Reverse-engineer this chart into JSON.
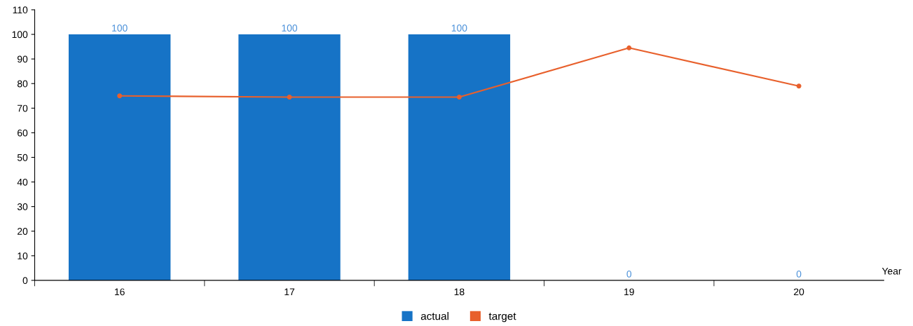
{
  "chart_data": {
    "type": "bar",
    "xlabel": "Year",
    "categories": [
      "16",
      "17",
      "18",
      "19",
      "20"
    ],
    "series": [
      {
        "name": "actual",
        "color": "#1673c6",
        "values": [
          100,
          100,
          100,
          0,
          0
        ],
        "value_labels": [
          "100",
          "100",
          "100",
          "0",
          "0"
        ]
      },
      {
        "name": "target",
        "type": "line",
        "color": "#e8602c",
        "values": [
          75,
          74.5,
          74.5,
          94.5,
          79
        ],
        "marker": "circle"
      }
    ],
    "ylim": [
      0,
      110
    ],
    "yticks": [
      0,
      10,
      20,
      30,
      40,
      50,
      60,
      70,
      80,
      90,
      100,
      110
    ],
    "legend": "bottom",
    "grid": false
  }
}
